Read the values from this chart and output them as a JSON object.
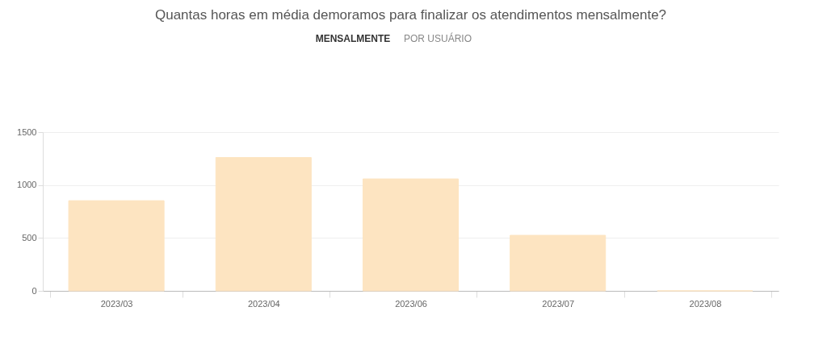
{
  "chart_data": {
    "type": "bar",
    "title": "Quantas horas em média demoramos para finalizar os atendimentos mensalmente?",
    "annotations": [
      "MENSALMENTE",
      "POR USUÁRIO"
    ],
    "categories": [
      "2023/03",
      "2023/04",
      "2023/06",
      "2023/07",
      "2023/08"
    ],
    "values": [
      852,
      1260,
      1058,
      525,
      0
    ],
    "color": "#fde4c1",
    "ylim": [
      0,
      1500
    ],
    "yticks": [
      0,
      500,
      1000,
      1500
    ],
    "grid": "y"
  }
}
